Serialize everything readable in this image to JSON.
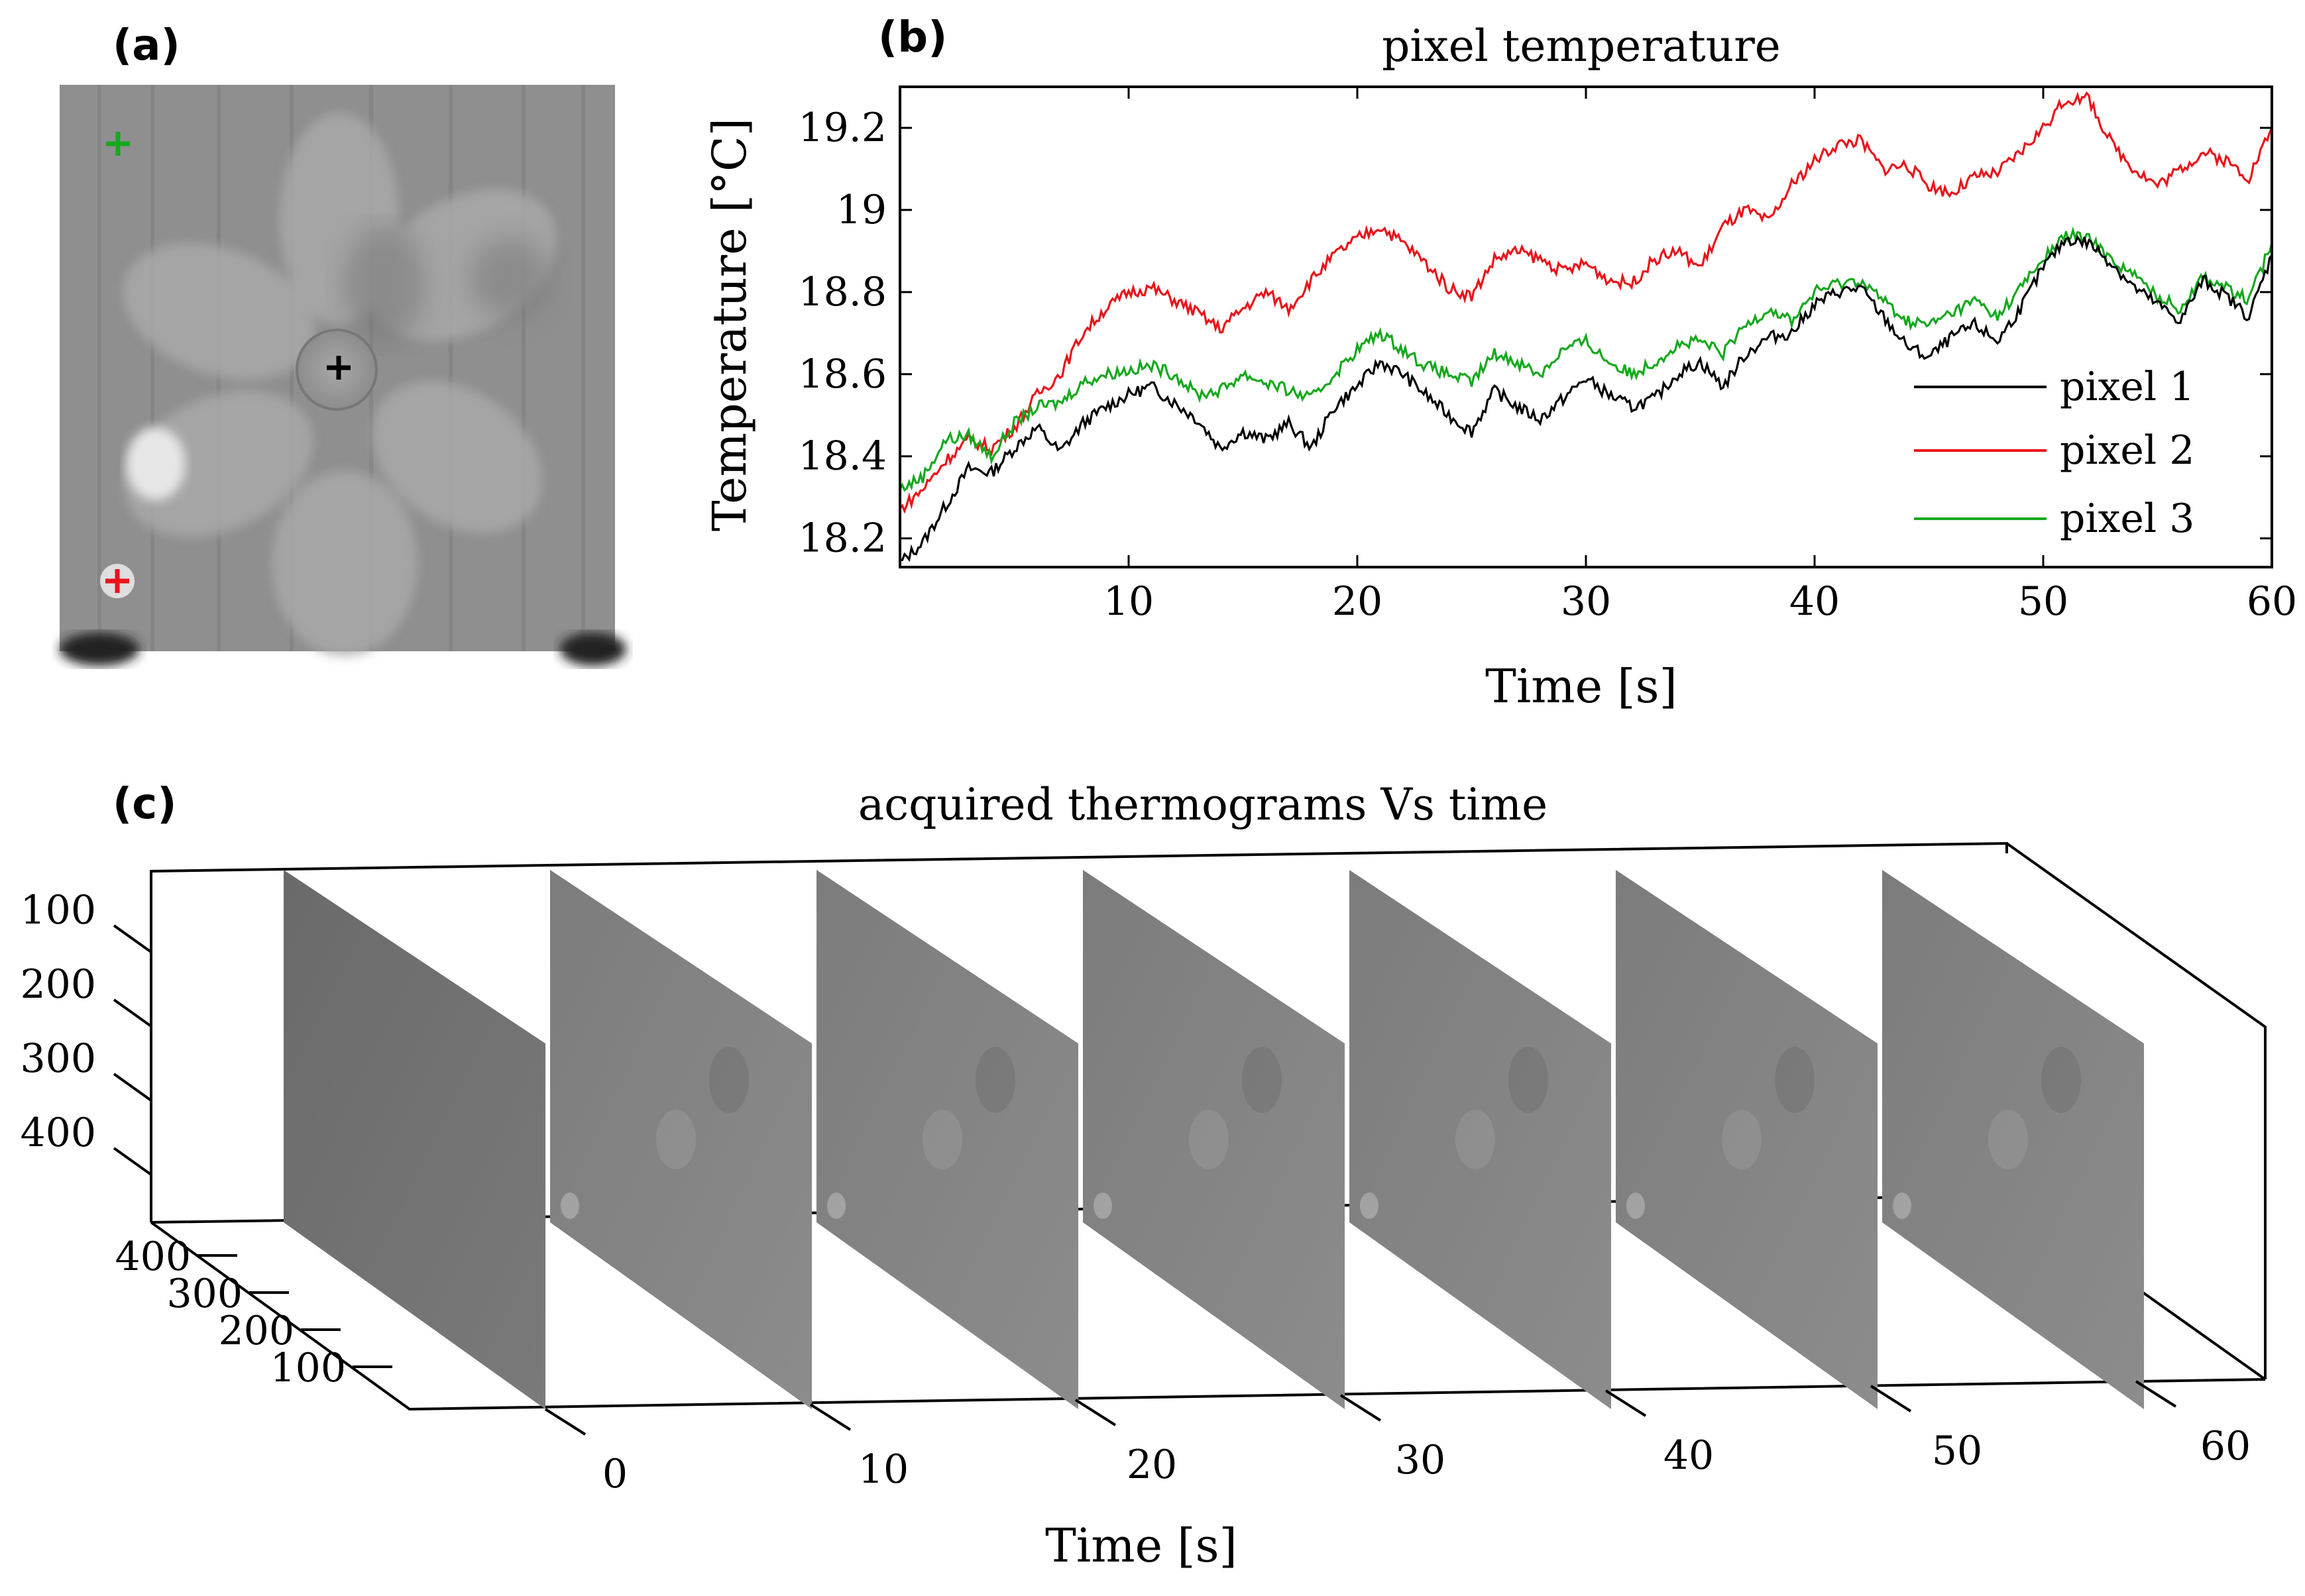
{
  "panels": {
    "a": {
      "label": "(a)"
    },
    "b": {
      "label": "(b)"
    },
    "c": {
      "label": "(c)"
    }
  },
  "colors": {
    "pixel1": "#000000",
    "pixel2": "#e8141b",
    "pixel3": "#16a81e"
  },
  "chart_data": [
    {
      "id": "panel-a",
      "type": "image",
      "title": "",
      "markers": [
        {
          "name": "pixel 1",
          "color": "#000000",
          "marker": "+"
        },
        {
          "name": "pixel 2",
          "color": "#e8141b",
          "marker": "+"
        },
        {
          "name": "pixel 3",
          "color": "#16a81e",
          "marker": "+"
        }
      ]
    },
    {
      "id": "panel-b",
      "type": "line",
      "title": "pixel temperature",
      "xlabel": "Time [s]",
      "ylabel": "Temperature [°C]",
      "xlim": [
        0,
        60
      ],
      "ylim": [
        18.13,
        19.3
      ],
      "xticks": [
        10,
        20,
        30,
        40,
        50,
        60
      ],
      "xtick_labels": [
        "10",
        "20",
        "30",
        "40",
        "50",
        "60"
      ],
      "yticks": [
        18.2,
        18.4,
        18.6,
        18.8,
        19.0,
        19.2
      ],
      "ytick_labels": [
        "18.2",
        "18.4",
        "18.6",
        "18.8",
        "19",
        "19.2"
      ],
      "grid": false,
      "legend": "right",
      "x": [
        0,
        1,
        2,
        3,
        4,
        5,
        6,
        7,
        8,
        9,
        10,
        11,
        12,
        13,
        14,
        15,
        16,
        17,
        18,
        19,
        20,
        21,
        22,
        23,
        24,
        25,
        26,
        27,
        28,
        29,
        30,
        31,
        32,
        33,
        34,
        35,
        36,
        37,
        38,
        39,
        40,
        41,
        42,
        43,
        44,
        45,
        46,
        47,
        48,
        49,
        50,
        51,
        52,
        53,
        54,
        55,
        56,
        57,
        58,
        59,
        60
      ],
      "series": [
        {
          "name": "pixel 1",
          "values": [
            18.14,
            18.19,
            18.28,
            18.37,
            18.36,
            18.42,
            18.47,
            18.41,
            18.48,
            18.52,
            18.55,
            18.57,
            18.53,
            18.49,
            18.42,
            18.46,
            18.44,
            18.48,
            18.42,
            18.52,
            18.57,
            18.63,
            18.6,
            18.55,
            18.5,
            18.46,
            18.56,
            18.52,
            18.49,
            18.54,
            18.59,
            18.55,
            18.52,
            18.54,
            18.6,
            18.63,
            18.57,
            18.65,
            18.69,
            18.7,
            18.77,
            18.8,
            18.81,
            18.74,
            18.67,
            18.64,
            18.69,
            18.72,
            18.68,
            18.76,
            18.86,
            18.93,
            18.92,
            18.87,
            18.81,
            18.77,
            18.73,
            18.83,
            18.79,
            18.74,
            18.89
          ]
        },
        {
          "name": "pixel 2",
          "values": [
            18.27,
            18.32,
            18.39,
            18.44,
            18.42,
            18.47,
            18.55,
            18.6,
            18.7,
            18.76,
            18.8,
            18.81,
            18.78,
            18.75,
            18.71,
            18.76,
            18.8,
            18.76,
            18.83,
            18.89,
            18.93,
            18.96,
            18.92,
            18.87,
            18.81,
            18.79,
            18.88,
            18.9,
            18.88,
            18.85,
            18.87,
            18.83,
            18.82,
            18.88,
            18.9,
            18.86,
            18.96,
            19.0,
            18.97,
            19.06,
            19.12,
            19.16,
            19.17,
            19.1,
            19.11,
            19.06,
            19.04,
            19.08,
            19.09,
            19.14,
            19.2,
            19.27,
            19.27,
            19.16,
            19.1,
            19.06,
            19.1,
            19.14,
            19.12,
            19.08,
            19.2
          ]
        },
        {
          "name": "pixel 3",
          "values": [
            18.32,
            18.35,
            18.44,
            18.45,
            18.4,
            18.48,
            18.52,
            18.53,
            18.58,
            18.6,
            18.61,
            18.62,
            18.6,
            18.55,
            18.56,
            18.6,
            18.58,
            18.56,
            18.54,
            18.6,
            18.66,
            18.7,
            18.66,
            18.62,
            18.6,
            18.58,
            18.65,
            18.63,
            18.6,
            18.66,
            18.68,
            18.63,
            18.6,
            18.63,
            18.67,
            18.68,
            18.65,
            18.72,
            18.76,
            18.73,
            18.8,
            18.82,
            18.83,
            18.78,
            18.73,
            18.72,
            18.75,
            18.78,
            18.74,
            18.81,
            18.88,
            18.94,
            18.93,
            18.88,
            18.84,
            18.79,
            18.76,
            18.84,
            18.81,
            18.78,
            18.92
          ]
        }
      ]
    },
    {
      "id": "panel-c",
      "type": "3d-slices",
      "title": "acquired thermograms Vs time",
      "xlabel": "Time [s]",
      "time_ticks": [
        "0",
        "10",
        "20",
        "30",
        "40",
        "50",
        "60"
      ],
      "vertical_ticks": [
        "100",
        "200",
        "300",
        "400"
      ],
      "depth_ticks": [
        "400",
        "300",
        "200",
        "100"
      ],
      "slice_times": [
        0,
        10,
        20,
        30,
        40,
        50,
        60
      ]
    }
  ]
}
